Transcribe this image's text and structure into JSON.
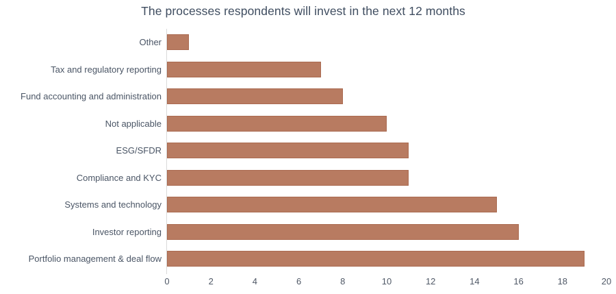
{
  "title": "The processes respondents will invest in the next 12 months",
  "colors": {
    "background": "#ffffff",
    "bar_fill": "#b87b61",
    "bar_border": "#aa6a50",
    "title_text": "#3f4d60",
    "label_text": "#4a5565",
    "tick_text": "#4f5866",
    "axis_line": "#d9d9d9"
  },
  "chart_data": {
    "type": "bar",
    "orientation": "horizontal",
    "title": "The processes respondents will invest in the next 12 months",
    "categories": [
      "Other",
      "Tax and regulatory reporting",
      "Fund accounting and administration",
      "Not applicable",
      "ESG/SFDR",
      "Compliance and KYC",
      "Systems and technology",
      "Investor reporting",
      "Portfolio management & deal flow"
    ],
    "values": [
      1,
      7,
      8,
      10,
      11,
      11,
      15,
      16,
      19
    ],
    "xlabel": "",
    "ylabel": "",
    "xlim": [
      0,
      20
    ],
    "x_ticks": [
      0,
      2,
      4,
      6,
      8,
      10,
      12,
      14,
      16,
      18,
      20
    ],
    "grid": false,
    "legend": false,
    "data_labels": false
  }
}
